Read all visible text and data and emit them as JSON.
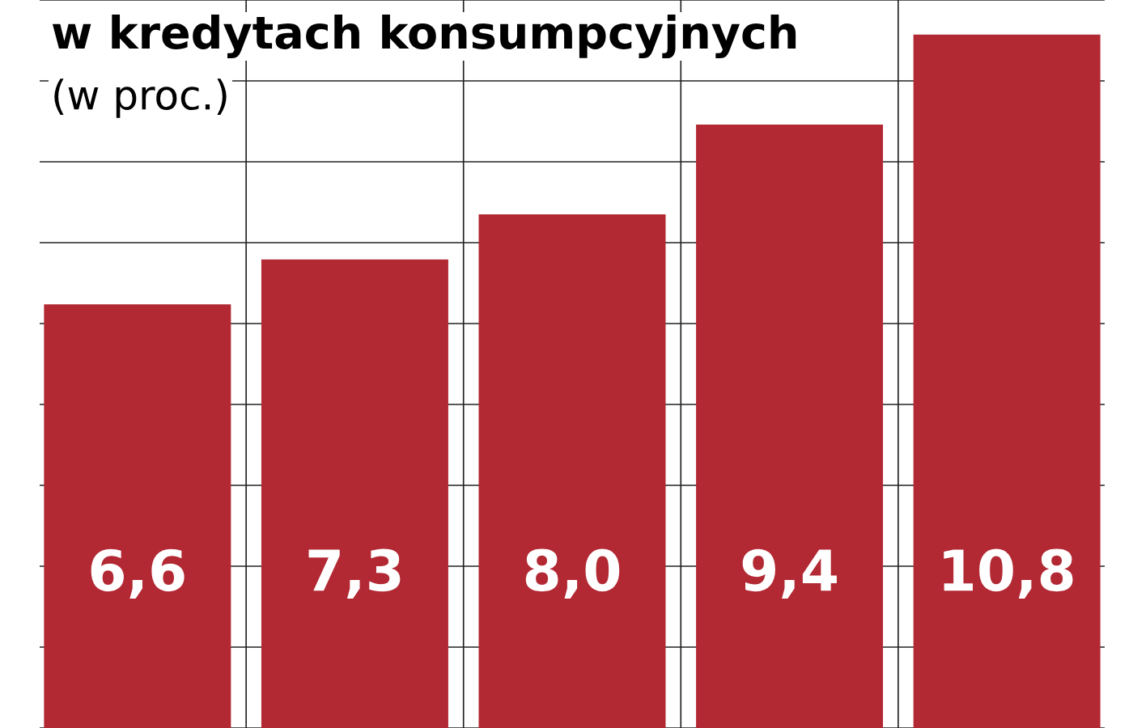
{
  "chart_data": {
    "type": "bar",
    "title": "w kredytach konsumpcyjnych",
    "subtitle": "(w proc.)",
    "categories": [
      null,
      null,
      null,
      null,
      null
    ],
    "values": [
      6.6,
      7.3,
      8.0,
      9.4,
      10.8
    ],
    "value_labels": [
      "6,6",
      "7,3",
      "8,0",
      "9,4",
      "10,8"
    ],
    "color": "#b22833",
    "grid": true,
    "tick_labels": false,
    "legend": false
  }
}
